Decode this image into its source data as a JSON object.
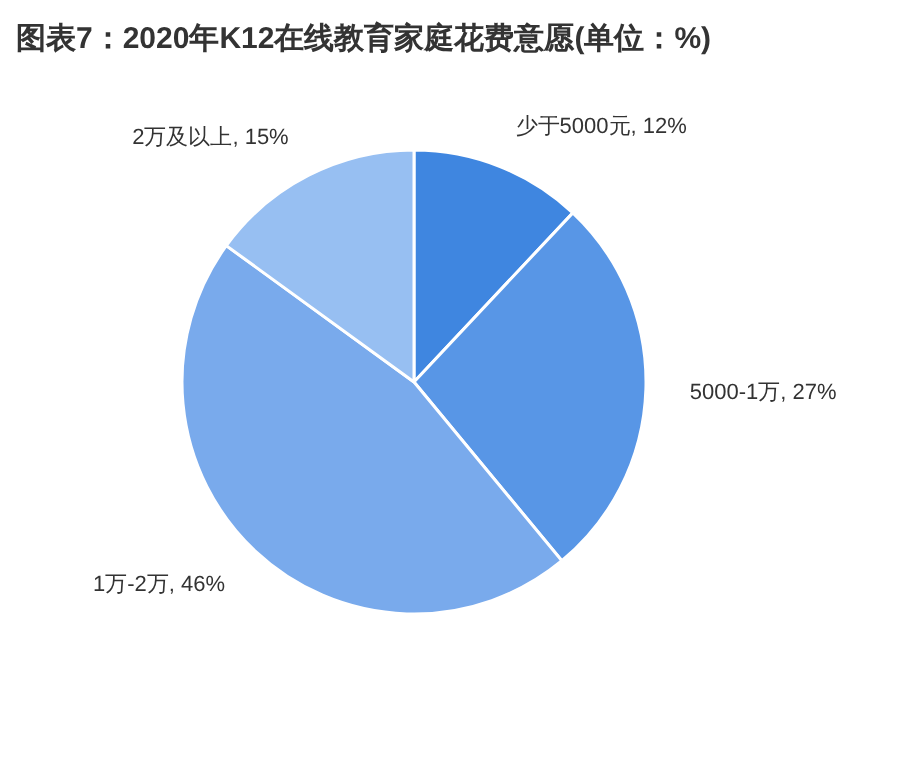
{
  "chart_data": {
    "type": "pie",
    "title": "图表7：2020年K12在线教育家庭花费意愿(单位：%)",
    "categories": [
      "少于5000元",
      "5000-1万",
      "1万-2万",
      "2万及以上"
    ],
    "values": [
      12,
      27,
      46,
      15
    ],
    "colors": [
      "#3f86e0",
      "#5896e6",
      "#79aaec",
      "#97bff2"
    ],
    "value_labels": [
      "12%",
      "27%",
      "46%",
      "15%"
    ]
  }
}
